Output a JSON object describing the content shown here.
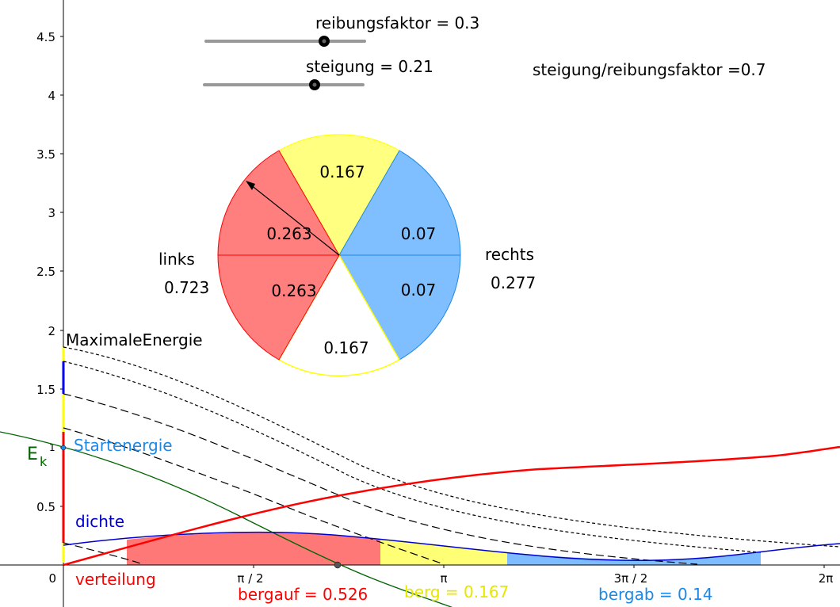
{
  "sliders": [
    {
      "label": "reibungsfaktor = 0.3",
      "value": 0.3,
      "min": 0,
      "max": 0.42
    },
    {
      "label": "steigung = 0.21",
      "value": 0.21,
      "min": 0,
      "max": 0.3
    }
  ],
  "ratio_text": "steigung/reibungsfaktor =0.7",
  "axes": {
    "y_ticks": [
      "0.5",
      "1",
      "1.5",
      "2",
      "2.5",
      "3",
      "3.5",
      "4",
      "4.5"
    ],
    "x_ticks": [
      "π / 2",
      "π",
      "3π / 2",
      "2π"
    ],
    "origin": "0",
    "ek": "E",
    "ek_sub": "k",
    "ek_tick": "1"
  },
  "pie": {
    "slices": [
      "0.167",
      "0.07",
      "0.07",
      "0.167",
      "0.263",
      "0.263"
    ],
    "links_label": "links",
    "links_value": "0.723",
    "rechts_label": "rechts",
    "rechts_value": "0.277"
  },
  "labels": {
    "maximale_energie": "MaximaleEnergie",
    "startenergie": "Startenergie",
    "dichte": "dichte",
    "verteilung": "verteilung",
    "bergauf": "bergauf = 0.526",
    "berg": "berg = 0.167",
    "bergab": "bergab = 0.14"
  },
  "colors": {
    "red": "#ff0000",
    "blue": "#0000cc",
    "lightblue": "#1e88e5",
    "yellow": "#e6e600",
    "green": "#006400",
    "pie_red": "#ff7f7f",
    "pie_yellow": "#ffff80",
    "pie_blue": "#80bfff"
  }
}
